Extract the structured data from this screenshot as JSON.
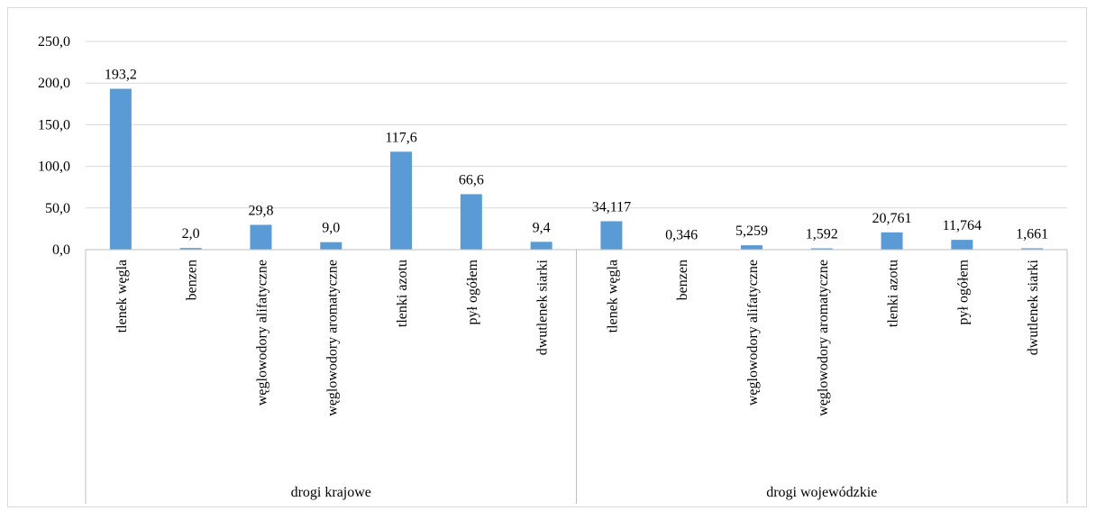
{
  "chart_data": {
    "type": "bar",
    "title": "",
    "xlabel": "",
    "ylabel": "",
    "ylim": [
      0,
      250
    ],
    "y_ticks": [
      "0,0",
      "50,0",
      "100,0",
      "150,0",
      "200,0",
      "250,0"
    ],
    "y_tick_values": [
      0,
      50,
      100,
      150,
      200,
      250
    ],
    "grid": true,
    "legend": "none",
    "bar_color": "#5b9bd5",
    "groups": [
      {
        "name": "drogi krajowe",
        "categories": [
          "tlenek węgla",
          "benzen",
          "węglowodory alifatyczne",
          "węglowodory aromatyczne",
          "tlenki azotu",
          "pył ogółem",
          "dwutlenek siarki"
        ],
        "values": [
          193.2,
          2.0,
          29.8,
          9.0,
          117.6,
          66.6,
          9.4
        ],
        "labels": [
          "193,2",
          "2,0",
          "29,8",
          "9,0",
          "117,6",
          "66,6",
          "9,4"
        ]
      },
      {
        "name": "drogi wojewódzkie",
        "categories": [
          "tlenek węgla",
          "benzen",
          "węglowodory alifatyczne",
          "węglowodory aromatyczne",
          "tlenki azotu",
          "pył ogółem",
          "dwutlenek siarki"
        ],
        "values": [
          34.117,
          0.346,
          5.259,
          1.592,
          20.761,
          11.764,
          1.661
        ],
        "labels": [
          "34,117",
          "0,346",
          "5,259",
          "1,592",
          "20,761",
          "11,764",
          "1,661"
        ]
      }
    ]
  }
}
